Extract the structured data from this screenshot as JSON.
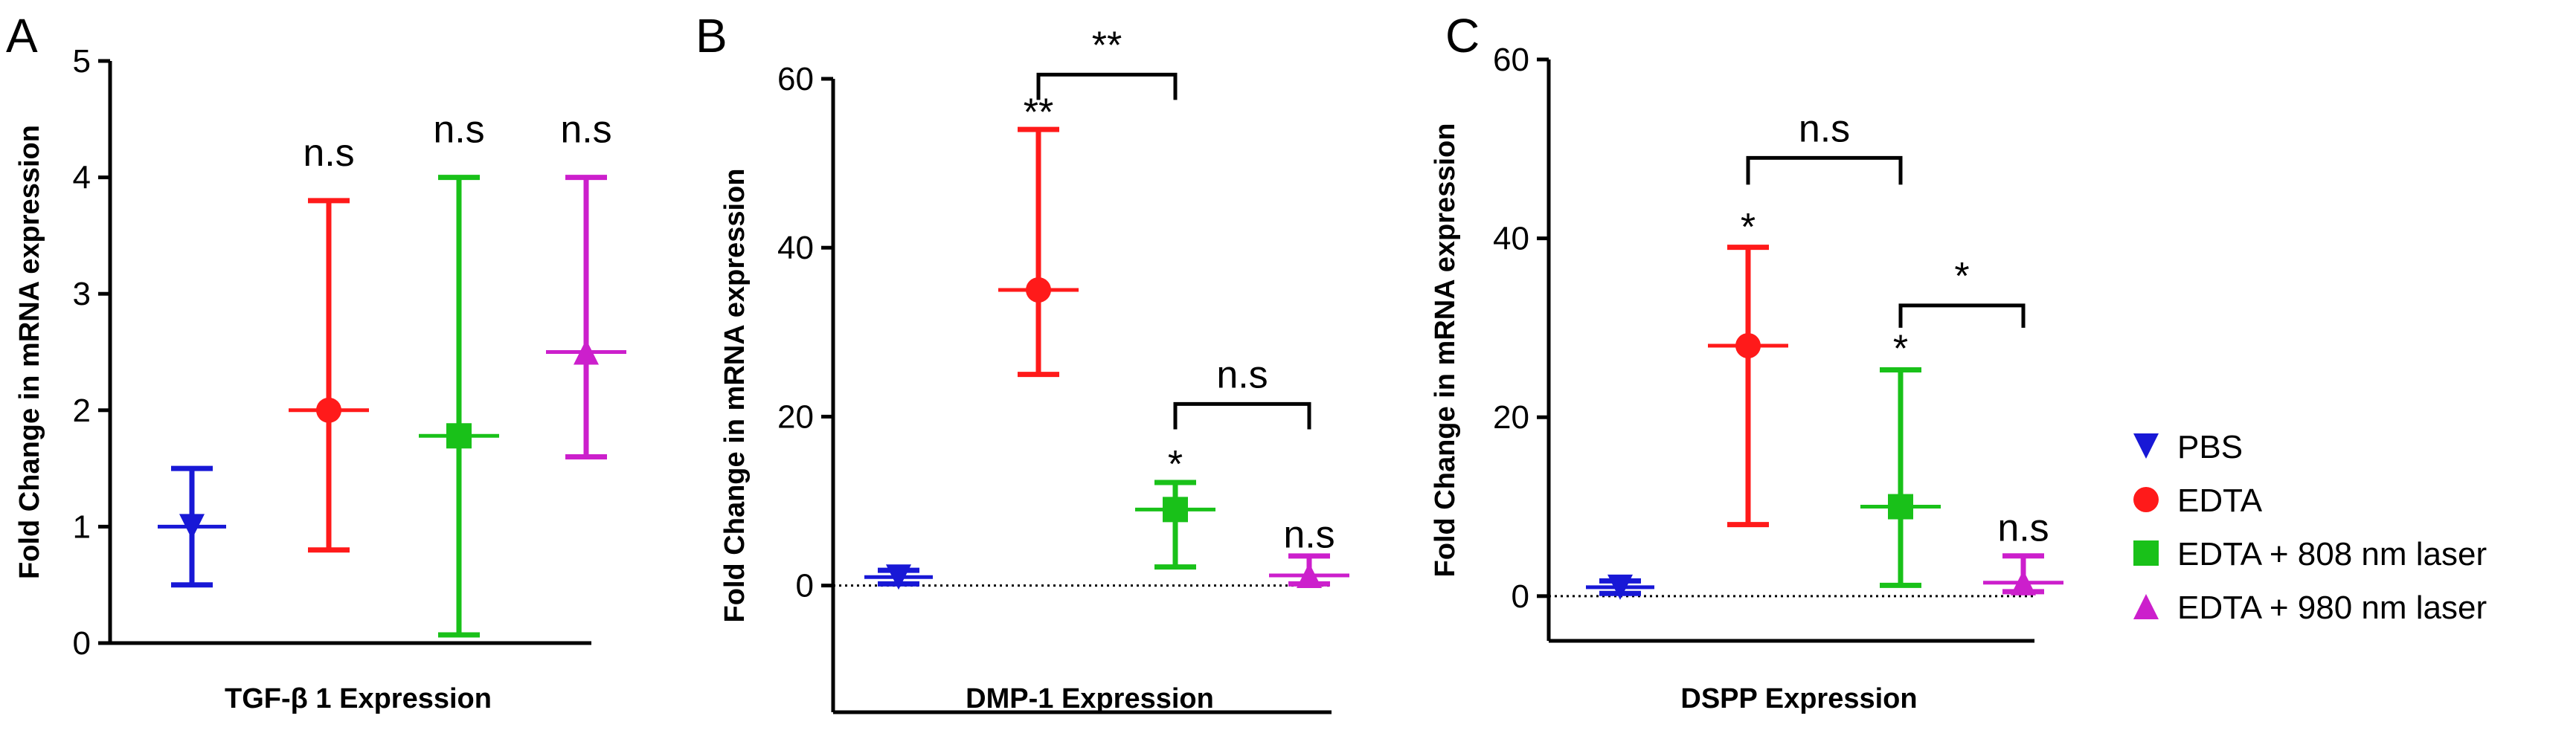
{
  "chart_data": [
    {
      "type": "scatter",
      "panel": "A",
      "xlabel": "TGF-β 1 Expression",
      "ylabel": "Fold Change in  mRNA expression",
      "ylim": [
        0,
        5
      ],
      "yticks": [
        "0",
        "1",
        "2",
        "3",
        "4",
        "5"
      ],
      "show_zero_line": false,
      "series": [
        {
          "name": "PBS",
          "mean": 1.0,
          "low": 0.5,
          "high": 1.5
        },
        {
          "name": "EDTA",
          "mean": 2.0,
          "low": 0.8,
          "high": 3.8
        },
        {
          "name": "EDTA +  808 nm laser",
          "mean": 1.78,
          "low": 0.07,
          "high": 4.0
        },
        {
          "name": "EDTA +  980 nm laser",
          "mean": 2.5,
          "low": 1.6,
          "high": 4.0
        }
      ],
      "annotations": [
        {
          "text": "n.s",
          "group": 1,
          "y": 4.1
        },
        {
          "text": "n.s",
          "group": 2,
          "y": 4.3
        },
        {
          "text": "n.s",
          "group": 3,
          "y": 4.3
        }
      ],
      "brackets": []
    },
    {
      "type": "scatter",
      "panel": "B",
      "xlabel": "DMP-1 Expression",
      "ylabel": "Fold Change in  mRNA expression",
      "ylim": [
        -15,
        60
      ],
      "yticks": [
        "0",
        "20",
        "40",
        "60"
      ],
      "show_zero_line": true,
      "series": [
        {
          "name": "PBS",
          "mean": 1.0,
          "low": 0.2,
          "high": 1.8
        },
        {
          "name": "EDTA",
          "mean": 35,
          "low": 25,
          "high": 54
        },
        {
          "name": "EDTA +  808 nm laser",
          "mean": 9,
          "low": 2.2,
          "high": 12.2
        },
        {
          "name": "EDTA +  980 nm laser",
          "mean": 1.2,
          "low": 0.2,
          "high": 3.5
        }
      ],
      "annotations": [
        {
          "text": "**",
          "group": 1,
          "y": 54.5
        },
        {
          "text": "*",
          "group": 2,
          "y": 12.8
        },
        {
          "text": "n.s",
          "group": 3,
          "y": 4.5
        }
      ],
      "brackets": [
        {
          "from": 1,
          "to": 2,
          "y": 60.5,
          "drop": 3.0,
          "label": "**"
        },
        {
          "from": 2,
          "to": 3,
          "y": 21.5,
          "drop": 3.0,
          "label": "n.s"
        }
      ]
    },
    {
      "type": "scatter",
      "panel": "C",
      "xlabel": "DSPP Expression",
      "ylabel": "Fold Change in  mRNA expression",
      "ylim": [
        -5,
        60
      ],
      "yticks": [
        "0",
        "20",
        "40",
        "60"
      ],
      "show_zero_line": true,
      "series": [
        {
          "name": "PBS",
          "mean": 1.0,
          "low": 0.3,
          "high": 1.7
        },
        {
          "name": "EDTA",
          "mean": 28,
          "low": 8,
          "high": 39
        },
        {
          "name": "EDTA +  808 nm laser",
          "mean": 10,
          "low": 1.2,
          "high": 25.3
        },
        {
          "name": "EDTA +  980 nm laser",
          "mean": 1.5,
          "low": 0.5,
          "high": 4.5
        }
      ],
      "annotations": [
        {
          "text": "*",
          "group": 1,
          "y": 39.8
        },
        {
          "text": "*",
          "group": 2,
          "y": 26.2
        },
        {
          "text": "n.s",
          "group": 3,
          "y": 6.2
        }
      ],
      "brackets": [
        {
          "from": 1,
          "to": 2,
          "y": 49.0,
          "drop": 3.0,
          "label": "n.s"
        },
        {
          "from": 2,
          "to": 3,
          "y": 32.5,
          "drop": 2.5,
          "label": "*"
        }
      ]
    }
  ],
  "legend": {
    "placement": "right",
    "items": [
      {
        "label": "PBS",
        "color": "#1818d6",
        "marker": "triangle-down"
      },
      {
        "label": "EDTA",
        "color": "#ff1a1a",
        "marker": "circle"
      },
      {
        "label": "EDTA +  808 nm laser",
        "color": "#19c119",
        "marker": "square"
      },
      {
        "label": "EDTA +  980 nm laser",
        "color": "#cc1fcc",
        "marker": "triangle-up"
      }
    ]
  }
}
